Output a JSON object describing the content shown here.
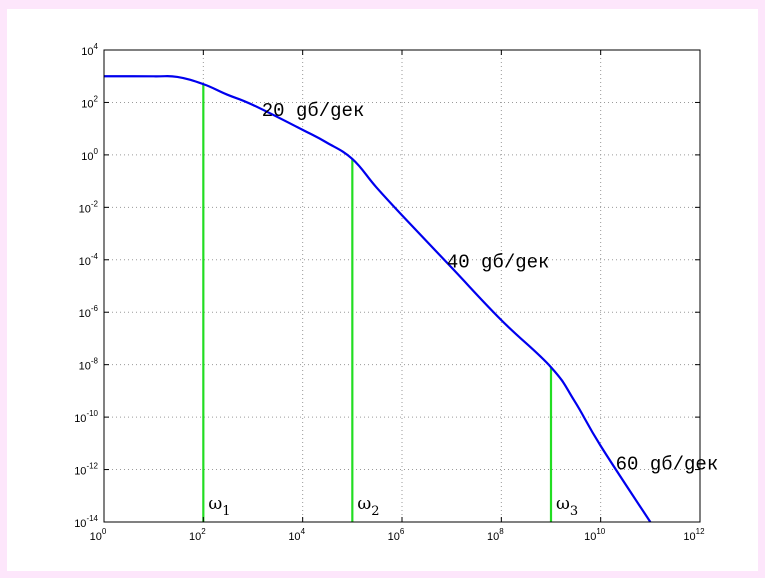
{
  "chart_data": {
    "type": "line",
    "title": "",
    "xlabel": "",
    "ylabel": "",
    "x_scale": "log",
    "y_scale": "log",
    "xlim": [
      1,
      1000000000000
    ],
    "ylim": [
      1e-14,
      10000
    ],
    "grid": true,
    "x_ticks": [
      {
        "base": "10",
        "exp": "0",
        "value": 1
      },
      {
        "base": "10",
        "exp": "2",
        "value": 100
      },
      {
        "base": "10",
        "exp": "4",
        "value": 10000
      },
      {
        "base": "10",
        "exp": "6",
        "value": 1000000
      },
      {
        "base": "10",
        "exp": "8",
        "value": 100000000
      },
      {
        "base": "10",
        "exp": "10",
        "value": 10000000000
      },
      {
        "base": "10",
        "exp": "12",
        "value": 1000000000000
      }
    ],
    "y_ticks": [
      {
        "base": "10",
        "exp": "4",
        "value": 10000
      },
      {
        "base": "10",
        "exp": "2",
        "value": 100
      },
      {
        "base": "10",
        "exp": "0",
        "value": 1
      },
      {
        "base": "10",
        "exp": "-2",
        "value": 0.01
      },
      {
        "base": "10",
        "exp": "-4",
        "value": 0.0001
      },
      {
        "base": "10",
        "exp": "-6",
        "value": 1e-06
      },
      {
        "base": "10",
        "exp": "-8",
        "value": 1e-08
      },
      {
        "base": "10",
        "exp": "-10",
        "value": 1e-10
      },
      {
        "base": "10",
        "exp": "-12",
        "value": 1e-12
      },
      {
        "base": "10",
        "exp": "-14",
        "value": 1e-14
      }
    ],
    "series": [
      {
        "color": "#0000ee",
        "points": [
          {
            "x": 1,
            "y": 1000
          },
          {
            "x": 10,
            "y": 990
          },
          {
            "x": 30,
            "y": 940
          },
          {
            "x": 100,
            "y": 500
          },
          {
            "x": 300,
            "y": 200
          },
          {
            "x": 1000,
            "y": 80
          },
          {
            "x": 10000,
            "y": 9
          },
          {
            "x": 30000,
            "y": 3
          },
          {
            "x": 100000,
            "y": 0.7
          },
          {
            "x": 300000,
            "y": 0.06
          },
          {
            "x": 1000000,
            "y": 0.005
          },
          {
            "x": 10000000,
            "y": 5e-05
          },
          {
            "x": 100000000,
            "y": 5e-07
          },
          {
            "x": 1000000000,
            "y": 8e-09
          },
          {
            "x": 3000000000,
            "y": 4e-10
          },
          {
            "x": 10000000000,
            "y": 8e-12
          },
          {
            "x": 100000000000,
            "y": 1e-14
          }
        ]
      }
    ],
    "markers": [
      {
        "x": 100,
        "y": 500,
        "label": "ω",
        "sub": "1",
        "color": "#22dd22"
      },
      {
        "x": 100000,
        "y": 0.7,
        "label": "ω",
        "sub": "2",
        "color": "#22dd22"
      },
      {
        "x": 1000000000,
        "y": 8e-09,
        "label": "ω",
        "sub": "3",
        "color": "#22dd22"
      }
    ],
    "annotations": [
      {
        "text": "20 gб/geк",
        "x": 1500,
        "y": 30
      },
      {
        "text": "40 gб/geк",
        "x": 8000000,
        "y": 5e-05
      },
      {
        "text": "60 gб/geк",
        "x": 20000000000,
        "y": 1e-12
      }
    ]
  }
}
